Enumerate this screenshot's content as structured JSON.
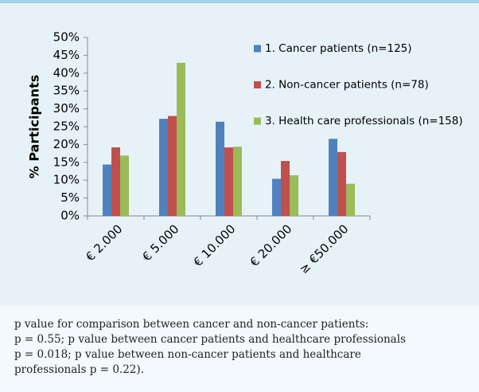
{
  "chart_data": {
    "type": "bar",
    "y_label": "% Participants",
    "categories": [
      "€ 2.000",
      "€ 5.000",
      "€ 10.000",
      "€ 20.000",
      "≥ €50.000"
    ],
    "series": [
      {
        "name": "1. Cancer patients (n=125)",
        "color": "#4f81bd",
        "values": [
          14.4,
          27.2,
          26.4,
          10.4,
          21.6
        ]
      },
      {
        "name": "2. Non-cancer patients (n=78)",
        "color": "#c0504d",
        "values": [
          19.2,
          28.0,
          19.2,
          15.4,
          17.9
        ]
      },
      {
        "name": "3. Health care professionals (n=158)",
        "color": "#9bbb59",
        "values": [
          16.9,
          42.9,
          19.4,
          11.4,
          9.0
        ]
      }
    ],
    "ylim": [
      0,
      50
    ],
    "yticks": [
      {
        "value": 0,
        "label": "0%"
      },
      {
        "value": 5,
        "label": "5%"
      },
      {
        "value": 10,
        "label": "10%"
      },
      {
        "value": 15,
        "label": "15%"
      },
      {
        "value": 20,
        "label": "20%"
      },
      {
        "value": 25,
        "label": "25%"
      },
      {
        "value": 30,
        "label": "30%"
      },
      {
        "value": 35,
        "label": "35%"
      },
      {
        "value": 40,
        "label": "40%"
      },
      {
        "value": 45,
        "label": "45%"
      },
      {
        "value": 50,
        "label": "50%"
      }
    ],
    "grid": false,
    "legend": "right"
  },
  "caption": [
    "p value for comparison between cancer and non-cancer patients:",
    "p = 0.55; p value between cancer patients and healthcare professionals",
    "p = 0.018; p value between non-cancer patients and healthcare",
    "professionals p = 0.22)."
  ]
}
